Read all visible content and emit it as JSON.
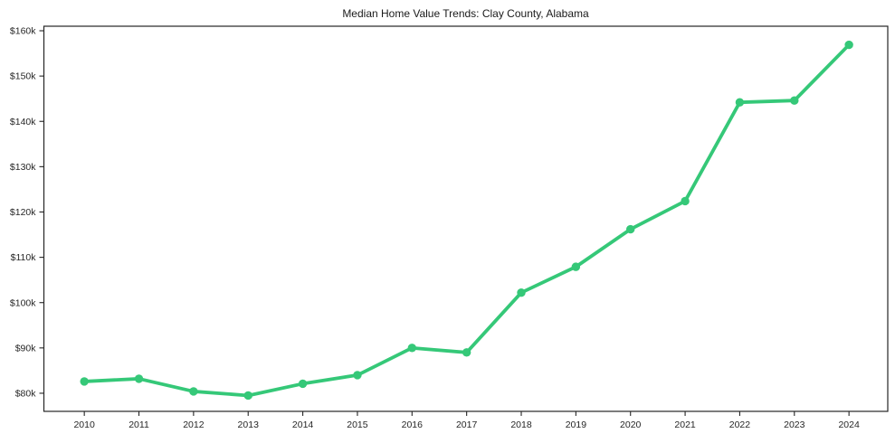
{
  "page": {
    "background": "#ffffff"
  },
  "chart_data": {
    "type": "line",
    "title": "Median Home Value Trends: Clay County, Alabama",
    "xlabel": "",
    "ylabel": "",
    "x": [
      2010,
      2011,
      2012,
      2013,
      2014,
      2015,
      2016,
      2017,
      2018,
      2019,
      2020,
      2021,
      2022,
      2023,
      2024
    ],
    "series": [
      {
        "name": "Median Home Value",
        "values": [
          82600,
          83200,
          80400,
          79500,
          82100,
          84000,
          90000,
          89000,
          102200,
          107900,
          116200,
          122400,
          144200,
          144600,
          156900
        ]
      }
    ],
    "x_tick_labels": [
      "2010",
      "2011",
      "2012",
      "2013",
      "2014",
      "2015",
      "2016",
      "2017",
      "2018",
      "2019",
      "2020",
      "2021",
      "2022",
      "2023",
      "2024"
    ],
    "y_ticks": [
      80000,
      90000,
      100000,
      110000,
      120000,
      130000,
      140000,
      150000,
      160000
    ],
    "y_tick_labels": [
      "$80k",
      "$90k",
      "$100k",
      "$110k",
      "$120k",
      "$130k",
      "$140k",
      "$150k",
      "$160k"
    ],
    "xlim": [
      2009.26,
      2024.71
    ],
    "ylim": [
      76000,
      161000
    ],
    "grid": false,
    "legend": "none",
    "marker": "circle",
    "line_color": "#35c878",
    "marker_color": "#35c878",
    "axis_color": "#262626",
    "text_color": "#262626"
  }
}
